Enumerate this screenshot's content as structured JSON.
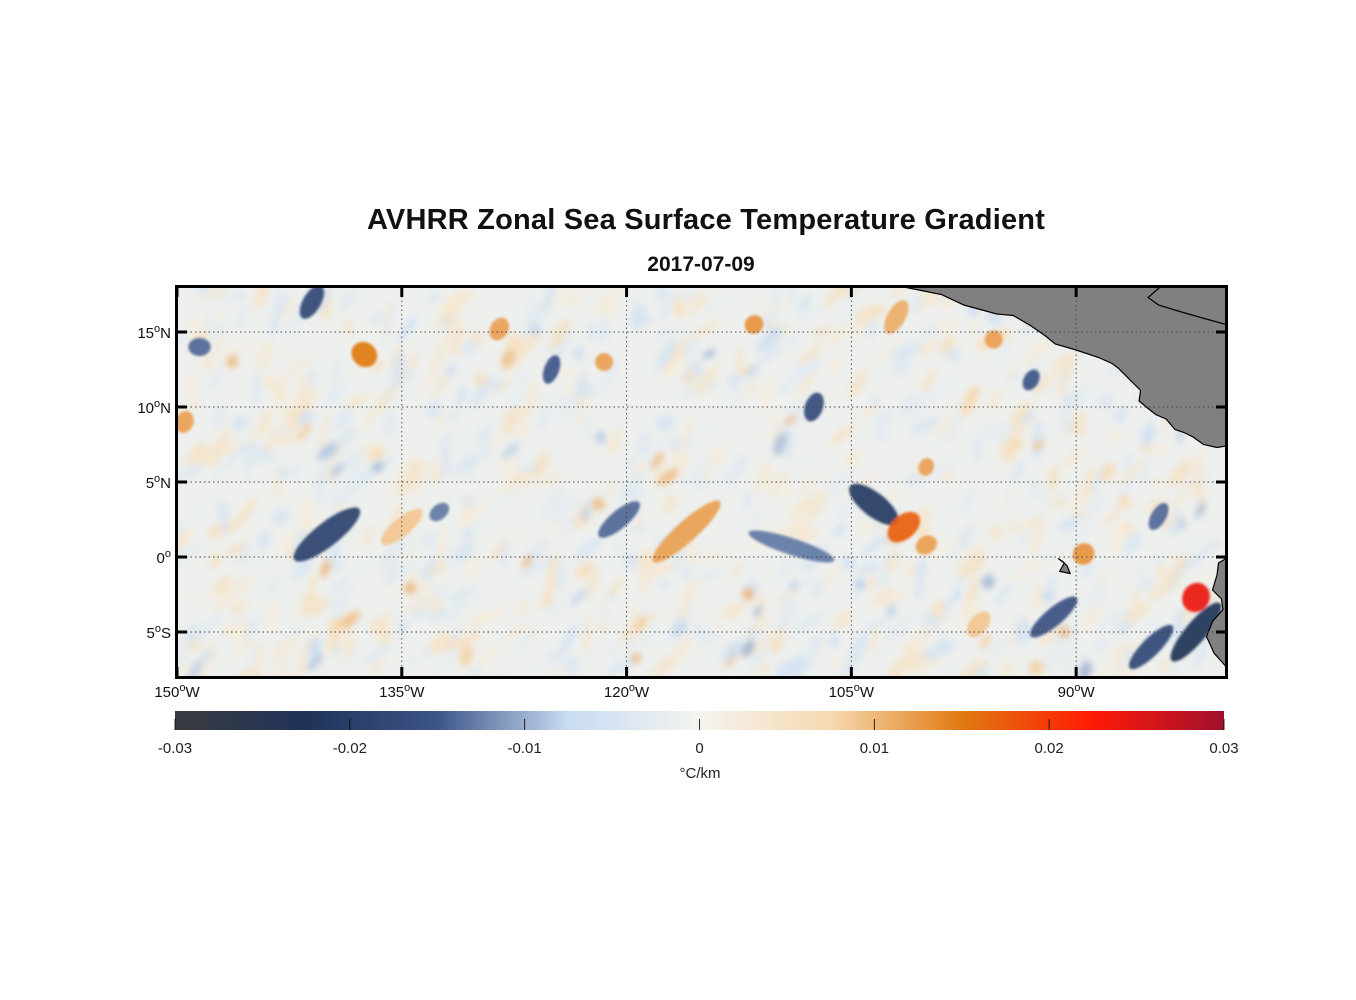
{
  "title": "AVHRR Zonal Sea Surface Temperature Gradient",
  "subtitle": "2017-07-09",
  "map": {
    "lon_range": [
      -150,
      -80
    ],
    "lat_range": [
      -8,
      18
    ],
    "gridlines": true,
    "land_color": "#808080",
    "y_ticks": [
      {
        "lat": 15,
        "num": "15",
        "deg": "o",
        "hem": "N"
      },
      {
        "lat": 10,
        "num": "10",
        "deg": "o",
        "hem": "N"
      },
      {
        "lat": 5,
        "num": "5",
        "deg": "o",
        "hem": "N"
      },
      {
        "lat": 0,
        "num": "0",
        "deg": "o",
        "hem": ""
      },
      {
        "lat": -5,
        "num": "5",
        "deg": "o",
        "hem": "S"
      }
    ],
    "x_ticks": [
      {
        "lon": -150,
        "num": "150",
        "deg": "o",
        "hem": "W"
      },
      {
        "lon": -135,
        "num": "135",
        "deg": "o",
        "hem": "W"
      },
      {
        "lon": -120,
        "num": "120",
        "deg": "o",
        "hem": "W"
      },
      {
        "lon": -105,
        "num": "105",
        "deg": "o",
        "hem": "W"
      },
      {
        "lon": -90,
        "num": "90",
        "deg": "o",
        "hem": "W"
      }
    ]
  },
  "colorbar": {
    "range": [
      -0.03,
      0.03
    ],
    "ticks": [
      "-0.03",
      "-0.02",
      "-0.01",
      "0",
      "0.01",
      "0.02",
      "0.03"
    ],
    "units": "°C/km",
    "colors": [
      "#3a3b3f",
      "#1f3358",
      "#3d5588",
      "#c8dcf2",
      "#f4f4ef",
      "#f6d9b0",
      "#e07a12",
      "#ff1a05",
      "#a0102e"
    ]
  },
  "features": {
    "negative": [
      {
        "lon": -140,
        "lat": 1.5,
        "len": 5.5,
        "w": 0.8,
        "angle": -38,
        "v": -0.019
      },
      {
        "lon": -120.5,
        "lat": 2.5,
        "len": 3.5,
        "w": 0.6,
        "angle": -40,
        "v": -0.014
      },
      {
        "lon": -109,
        "lat": 0.7,
        "len": 6,
        "w": 0.55,
        "angle": 18,
        "v": -0.013
      },
      {
        "lon": -103.5,
        "lat": 3.5,
        "len": 4,
        "w": 0.8,
        "angle": 38,
        "v": -0.021
      },
      {
        "lon": -91.5,
        "lat": -4,
        "len": 4,
        "w": 0.6,
        "angle": -40,
        "v": -0.016
      },
      {
        "lon": -82,
        "lat": -5,
        "len": 5,
        "w": 0.7,
        "angle": -50,
        "v": -0.023
      },
      {
        "lon": -85,
        "lat": -6,
        "len": 4,
        "w": 0.6,
        "angle": -45,
        "v": -0.018
      },
      {
        "lon": -141,
        "lat": 17,
        "len": 2.5,
        "w": 0.6,
        "angle": -60,
        "v": -0.018
      },
      {
        "lon": -107.5,
        "lat": 10,
        "len": 2,
        "w": 0.6,
        "angle": -70,
        "v": -0.017
      },
      {
        "lon": -125,
        "lat": 12.5,
        "len": 2,
        "w": 0.5,
        "angle": -70,
        "v": -0.015
      },
      {
        "lon": -148.5,
        "lat": 14,
        "len": 1.5,
        "w": 0.6,
        "angle": 0,
        "v": -0.014
      },
      {
        "lon": -132.5,
        "lat": 3,
        "len": 1.5,
        "w": 0.5,
        "angle": -40,
        "v": -0.013
      },
      {
        "lon": -93,
        "lat": 11.8,
        "len": 1.5,
        "w": 0.5,
        "angle": -60,
        "v": -0.015
      },
      {
        "lon": -84.5,
        "lat": 2.7,
        "len": 2,
        "w": 0.5,
        "angle": -60,
        "v": -0.014
      }
    ],
    "positive": [
      {
        "lon": -116,
        "lat": 1.7,
        "len": 6,
        "w": 0.7,
        "angle": -42,
        "v": 0.012
      },
      {
        "lon": -101.5,
        "lat": 2.0,
        "len": 2.5,
        "w": 0.8,
        "angle": -40,
        "v": 0.017
      },
      {
        "lon": -100,
        "lat": 0.8,
        "len": 1.5,
        "w": 0.6,
        "angle": -30,
        "v": 0.012
      },
      {
        "lon": -135,
        "lat": 2.0,
        "len": 3.5,
        "w": 0.6,
        "angle": -40,
        "v": 0.009
      },
      {
        "lon": -82,
        "lat": -2.7,
        "len": 2,
        "w": 0.9,
        "angle": -60,
        "v": 0.024
      },
      {
        "lon": -89.5,
        "lat": 0.2,
        "len": 1.5,
        "w": 0.7,
        "angle": -50,
        "v": 0.013
      },
      {
        "lon": -137.5,
        "lat": 13.5,
        "len": 1.6,
        "w": 0.9,
        "angle": -50,
        "v": 0.015
      },
      {
        "lon": -149.5,
        "lat": 9,
        "len": 1.5,
        "w": 0.6,
        "angle": -70,
        "v": 0.012
      },
      {
        "lon": -128.5,
        "lat": 15.2,
        "len": 1.6,
        "w": 0.6,
        "angle": -60,
        "v": 0.012
      },
      {
        "lon": -121.5,
        "lat": 13,
        "len": 1.2,
        "w": 0.6,
        "angle": -50,
        "v": 0.012
      },
      {
        "lon": -111.5,
        "lat": 15.5,
        "len": 1.3,
        "w": 0.6,
        "angle": -40,
        "v": 0.013
      },
      {
        "lon": -95.5,
        "lat": 14.5,
        "len": 1.2,
        "w": 0.6,
        "angle": -60,
        "v": 0.012
      },
      {
        "lon": -102,
        "lat": 16,
        "len": 2.5,
        "w": 0.6,
        "angle": -60,
        "v": 0.011
      },
      {
        "lon": -96.5,
        "lat": -4.5,
        "len": 2,
        "w": 0.6,
        "angle": -50,
        "v": 0.009
      },
      {
        "lon": -100,
        "lat": 6,
        "len": 1.2,
        "w": 0.5,
        "angle": -70,
        "v": 0.012
      }
    ]
  },
  "land": {
    "central_america": [
      [
        -101.5,
        18
      ],
      [
        -99,
        17.5
      ],
      [
        -97.5,
        16.8
      ],
      [
        -95.3,
        16.2
      ],
      [
        -94.2,
        16.1
      ],
      [
        -93,
        15.4
      ],
      [
        -92,
        14.7
      ],
      [
        -91.4,
        14.2
      ],
      [
        -90,
        13.8
      ],
      [
        -88.5,
        13.3
      ],
      [
        -87.6,
        12.9
      ],
      [
        -87.2,
        12.6
      ],
      [
        -86.3,
        11.7
      ],
      [
        -85.7,
        11.1
      ],
      [
        -85.8,
        10.4
      ],
      [
        -85.2,
        9.9
      ],
      [
        -84.7,
        9.5
      ],
      [
        -84,
        9.2
      ],
      [
        -83.4,
        8.5
      ],
      [
        -82.8,
        8.3
      ],
      [
        -82.2,
        8.0
      ],
      [
        -81.5,
        7.5
      ],
      [
        -80.6,
        7.3
      ],
      [
        -80,
        7.4
      ],
      [
        -80,
        18
      ]
    ],
    "hispaniola": [
      [
        -84.4,
        18
      ],
      [
        -85.2,
        17.3
      ],
      [
        -84.5,
        16.8
      ],
      [
        -83.2,
        16.4
      ],
      [
        -81.8,
        16
      ],
      [
        -80,
        15.5
      ],
      [
        -80,
        18
      ]
    ],
    "south_america": [
      [
        -80,
        -0.1
      ],
      [
        -80.5,
        -0.4
      ],
      [
        -80.6,
        -1.2
      ],
      [
        -80.9,
        -2.2
      ],
      [
        -80.3,
        -2.8
      ],
      [
        -80.2,
        -3.5
      ],
      [
        -80.9,
        -4.3
      ],
      [
        -81.3,
        -5.3
      ],
      [
        -80.8,
        -6.4
      ],
      [
        -80,
        -7.3
      ],
      [
        -80,
        -0.1
      ]
    ],
    "galapagos": [
      [
        -91.2,
        -0.1
      ],
      [
        -90.8,
        -0.4
      ],
      [
        -91.1,
        -0.95
      ],
      [
        -90.4,
        -1.1
      ],
      [
        -90.6,
        -0.6
      ],
      [
        -90.9,
        -0.3
      ],
      [
        -91.2,
        -0.1
      ]
    ]
  }
}
